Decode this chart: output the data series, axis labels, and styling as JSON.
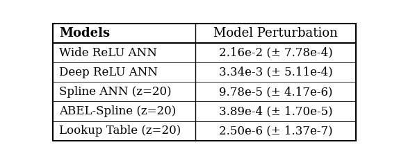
{
  "col_headers": [
    "Models",
    "Model Perturbation"
  ],
  "rows": [
    [
      "Wide ReLU ANN",
      "2.16e-2 (± 7.78e-4)"
    ],
    [
      "Deep ReLU ANN",
      "3.34e-3 (± 5.11e-4)"
    ],
    [
      "Spline ANN (z=20)",
      "9.78e-5 (± 4.17e-6)"
    ],
    [
      "ABEL-Spline (z=20)",
      "3.89e-4 (± 1.70e-5)"
    ],
    [
      "Lookup Table (z=20)",
      "2.50e-6 (± 1.37e-7)"
    ]
  ],
  "col_split": 0.47,
  "header_fontsize": 13,
  "row_fontsize": 12,
  "background_color": "#ffffff",
  "figsize": [
    5.74,
    2.38
  ],
  "dpi": 100
}
